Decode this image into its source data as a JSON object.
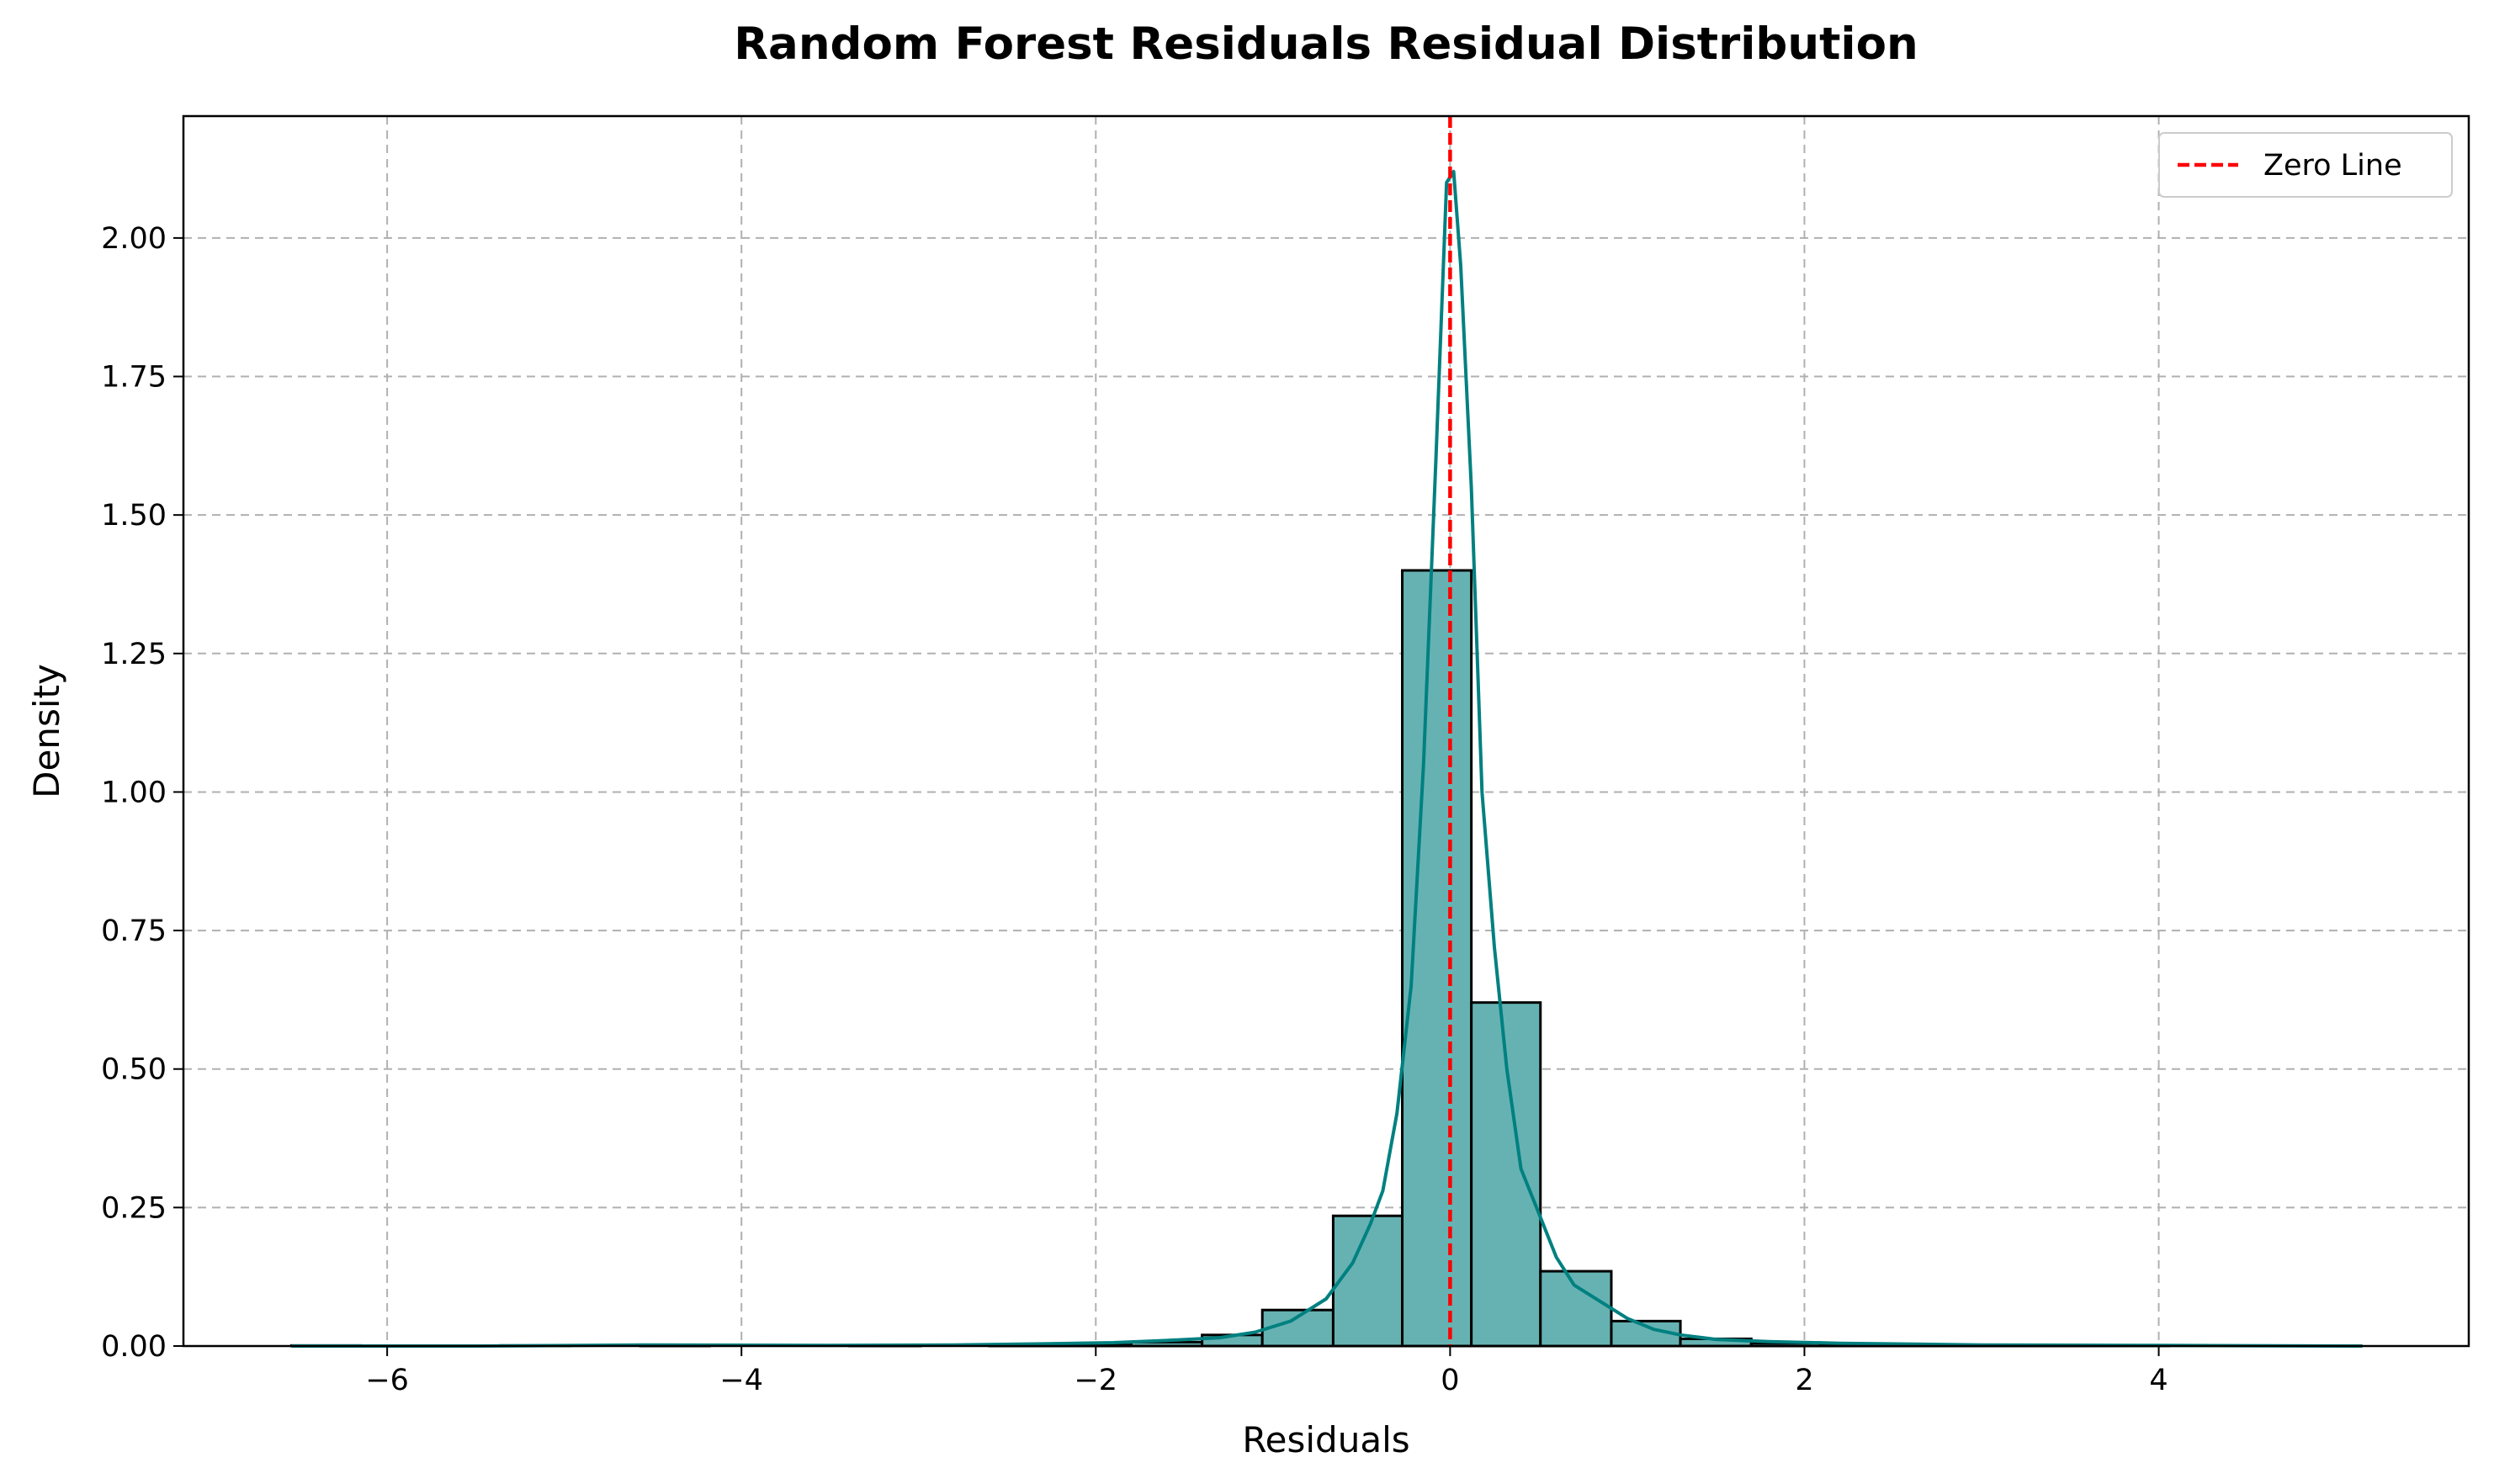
{
  "chart_data": {
    "type": "bar",
    "title": "Random Forest Residuals Residual Distribution",
    "xlabel": "Residuals",
    "ylabel": "Density",
    "xlim": [
      -7.15,
      5.75
    ],
    "ylim": [
      0,
      2.22
    ],
    "xticks": [
      -6,
      -4,
      -2,
      0,
      2,
      4
    ],
    "xtick_labels": [
      "−6",
      "−4",
      "−2",
      "0",
      "2",
      "4"
    ],
    "yticks": [
      0,
      0.25,
      0.5,
      0.75,
      1.0,
      1.25,
      1.5,
      1.75,
      2.0
    ],
    "ytick_labels": [
      "0.00",
      "0.25",
      "0.50",
      "0.75",
      "1.00",
      "1.25",
      "1.50",
      "1.75",
      "2.00"
    ],
    "grid": true,
    "legend_position": "top-right",
    "colors": {
      "bars": "#66b2b2",
      "kde": "#008080",
      "zero_line": "#ff0000"
    },
    "histogram": {
      "bin_edges": [
        -6.54,
        -6.15,
        -5.75,
        -5.36,
        -4.97,
        -4.57,
        -4.18,
        -3.78,
        -3.39,
        -2.99,
        -2.6,
        -2.2,
        -1.8,
        -1.4,
        -1.06,
        -0.66,
        -0.27,
        0.12,
        0.51,
        0.91,
        1.3,
        1.7,
        2.09,
        2.49,
        2.88,
        3.27,
        3.67,
        4.06,
        4.46,
        4.85,
        5.15
      ],
      "densities": [
        0.001,
        0.0,
        0.0,
        0.001,
        0.0,
        0.001,
        0.0,
        0.0,
        0.001,
        0.0,
        0.001,
        0.002,
        0.007,
        0.02,
        0.065,
        0.235,
        1.4,
        0.62,
        0.135,
        0.045,
        0.013,
        0.005,
        0.003,
        0.002,
        0.001,
        0.001,
        0.001,
        0.0,
        0.0,
        0.0
      ]
    },
    "kde": {
      "x": [
        -6.54,
        -5.5,
        -4.5,
        -3.5,
        -2.8,
        -2.3,
        -1.9,
        -1.6,
        -1.3,
        -1.1,
        -0.9,
        -0.7,
        -0.55,
        -0.45,
        -0.38,
        -0.3,
        -0.22,
        -0.15,
        -0.08,
        -0.02,
        0.02,
        0.06,
        0.12,
        0.18,
        0.25,
        0.32,
        0.4,
        0.5,
        0.6,
        0.7,
        0.85,
        1.0,
        1.15,
        1.3,
        1.5,
        1.8,
        2.2,
        3.0,
        4.0,
        5.15
      ],
      "y": [
        0.0,
        0.0,
        0.002,
        0.001,
        0.002,
        0.004,
        0.006,
        0.01,
        0.015,
        0.025,
        0.045,
        0.085,
        0.15,
        0.22,
        0.28,
        0.42,
        0.65,
        1.05,
        1.6,
        2.1,
        2.12,
        1.95,
        1.55,
        1.0,
        0.72,
        0.5,
        0.32,
        0.24,
        0.16,
        0.11,
        0.08,
        0.05,
        0.03,
        0.02,
        0.012,
        0.008,
        0.005,
        0.002,
        0.001,
        0.0
      ]
    },
    "reference_line": {
      "x": 0,
      "label": "Zero Line"
    }
  }
}
